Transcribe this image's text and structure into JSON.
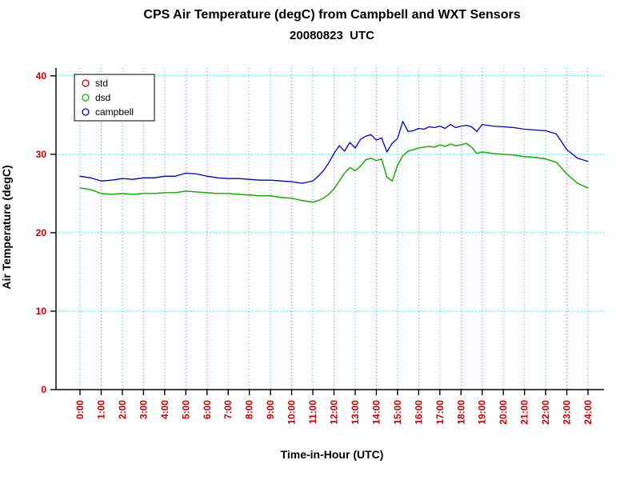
{
  "chart_data": {
    "type": "line",
    "title": "CPS Air Temperature (degC) from Campbell and WXT Sensors",
    "subtitle": "20080823  UTC",
    "xlabel": "Time-in-Hour (UTC)",
    "ylabel": "Air Temperature (degC)",
    "xlim": [
      0,
      24
    ],
    "ylim": [
      0,
      40
    ],
    "grid": true,
    "legend_position": "top-left",
    "colors": {
      "grid": "#00dddd",
      "tick_labels": "#cc0000",
      "axis": "#000000",
      "legend_text": "#000000"
    },
    "y_ticks": [
      0,
      10,
      20,
      30,
      40
    ],
    "x_tick_hours": [
      0,
      1,
      2,
      3,
      4,
      5,
      6,
      7,
      8,
      9,
      10,
      11,
      12,
      13,
      14,
      15,
      16,
      17,
      18,
      19,
      20,
      21,
      22,
      23,
      24
    ],
    "x_tick_labels": [
      "0:00",
      "1:00",
      "2:00",
      "3:00",
      "4:00",
      "5:00",
      "6:00",
      "7:00",
      "8:00",
      "9:00",
      "10:00",
      "11:00",
      "12:00",
      "13:00",
      "14:00",
      "15:00",
      "16:00",
      "17:00",
      "18:00",
      "19:00",
      "20:00",
      "21:00",
      "22:00",
      "23:00",
      "24:00"
    ],
    "legend": {
      "entries": [
        {
          "label": "std",
          "color": "#dd0000"
        },
        {
          "label": "dsd",
          "color": "#00bb00"
        },
        {
          "label": "campbell",
          "color": "#0000cc"
        }
      ]
    },
    "x": [
      0,
      0.5,
      1,
      1.5,
      2,
      2.5,
      3,
      3.5,
      4,
      4.5,
      5,
      5.5,
      6,
      6.5,
      7,
      7.5,
      8,
      8.5,
      9,
      9.5,
      10,
      10.5,
      11,
      11.25,
      11.5,
      11.75,
      12,
      12.25,
      12.5,
      12.75,
      13,
      13.25,
      13.5,
      13.75,
      14,
      14.25,
      14.5,
      14.75,
      15,
      15.25,
      15.5,
      15.75,
      16,
      16.25,
      16.5,
      16.75,
      17,
      17.25,
      17.5,
      17.75,
      18,
      18.25,
      18.5,
      18.75,
      19,
      19.5,
      20,
      20.5,
      21,
      21.5,
      22,
      22.5,
      23,
      23.5,
      24
    ],
    "series": [
      {
        "name": "std",
        "color": "#dd0000",
        "values": [
          25.7,
          25.5,
          25.0,
          24.9,
          25.0,
          24.9,
          25.0,
          25.0,
          25.1,
          25.1,
          25.3,
          25.2,
          25.1,
          25.0,
          25.0,
          24.9,
          24.8,
          24.7,
          24.7,
          24.5,
          24.4,
          24.1,
          23.9,
          24.1,
          24.4,
          24.9,
          25.6,
          26.6,
          27.6,
          28.3,
          27.9,
          28.5,
          29.3,
          29.5,
          29.2,
          29.4,
          27.1,
          26.6,
          28.6,
          29.8,
          30.4,
          30.6,
          30.8,
          30.9,
          31.0,
          30.9,
          31.2,
          31.0,
          31.3,
          31.1,
          31.2,
          31.4,
          30.9,
          30.1,
          30.3,
          30.1,
          30.0,
          29.9,
          29.7,
          29.6,
          29.4,
          29.0,
          27.5,
          26.3,
          25.7
        ]
      },
      {
        "name": "dsd",
        "color": "#00bb00",
        "values": [
          25.7,
          25.5,
          25.0,
          24.9,
          25.0,
          24.9,
          25.0,
          25.0,
          25.1,
          25.1,
          25.3,
          25.2,
          25.1,
          25.0,
          25.0,
          24.9,
          24.8,
          24.7,
          24.7,
          24.5,
          24.4,
          24.1,
          23.9,
          24.1,
          24.4,
          24.9,
          25.6,
          26.6,
          27.6,
          28.3,
          27.9,
          28.5,
          29.3,
          29.5,
          29.2,
          29.4,
          27.1,
          26.6,
          28.6,
          29.8,
          30.4,
          30.6,
          30.8,
          30.9,
          31.0,
          30.9,
          31.2,
          31.0,
          31.3,
          31.1,
          31.2,
          31.4,
          30.9,
          30.1,
          30.3,
          30.1,
          30.0,
          29.9,
          29.7,
          29.6,
          29.4,
          29.0,
          27.5,
          26.3,
          25.7
        ]
      },
      {
        "name": "campbell",
        "color": "#0000cc",
        "values": [
          27.2,
          27.0,
          26.6,
          26.7,
          26.9,
          26.8,
          27.0,
          27.0,
          27.2,
          27.2,
          27.6,
          27.5,
          27.2,
          27.0,
          26.9,
          26.9,
          26.8,
          26.7,
          26.7,
          26.6,
          26.5,
          26.3,
          26.6,
          27.2,
          27.9,
          28.9,
          30.1,
          31.1,
          30.4,
          31.5,
          30.8,
          31.9,
          32.3,
          32.5,
          31.8,
          32.1,
          30.3,
          31.4,
          32.0,
          34.2,
          32.9,
          33.0,
          33.3,
          33.2,
          33.5,
          33.4,
          33.6,
          33.3,
          33.8,
          33.4,
          33.6,
          33.7,
          33.5,
          32.9,
          33.8,
          33.6,
          33.5,
          33.4,
          33.2,
          33.1,
          33.0,
          32.6,
          30.6,
          29.5,
          29.1
        ]
      }
    ]
  }
}
